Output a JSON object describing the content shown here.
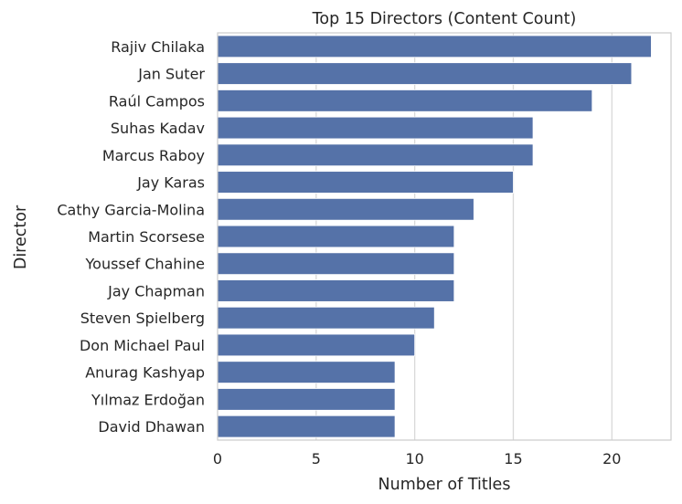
{
  "chart_data": {
    "type": "bar",
    "orientation": "horizontal",
    "title": "Top 15 Directors (Content Count)",
    "xlabel": "Number of Titles",
    "ylabel": "Director",
    "categories": [
      "Rajiv Chilaka",
      "Jan Suter",
      "Raúl Campos",
      "Suhas Kadav",
      "Marcus Raboy",
      "Jay Karas",
      "Cathy Garcia-Molina",
      "Martin Scorsese",
      "Youssef Chahine",
      "Jay Chapman",
      "Steven Spielberg",
      "Don Michael Paul",
      "Anurag Kashyap",
      "Yılmaz Erdoğan",
      "David Dhawan"
    ],
    "values": [
      22,
      21,
      19,
      16,
      16,
      15,
      13,
      12,
      12,
      12,
      11,
      10,
      9,
      9,
      9
    ],
    "xlim": [
      0,
      23
    ],
    "xticks": [
      0,
      5,
      10,
      15,
      20
    ],
    "xtick_labels": [
      "0",
      "5",
      "10",
      "15",
      "20"
    ],
    "grid": true,
    "bar_color": "#5572a8",
    "grid_color": "#d9d9d9"
  }
}
